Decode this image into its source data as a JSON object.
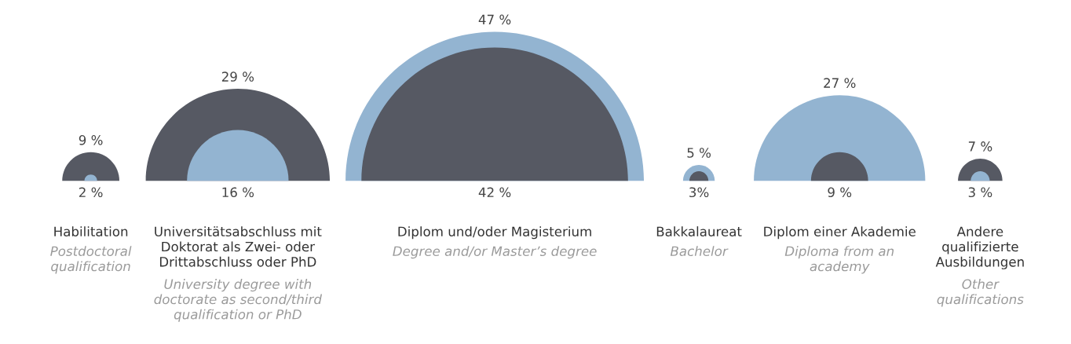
{
  "chart_data": {
    "type": "other",
    "categories": [
      "Habilitation",
      "Universitätsabschluss mit\nDoktorat als Zwei- oder\nDrittabschluss oder PhD",
      "Diplom und/oder Magisterium",
      "Bakkalaureat",
      "Diplom einer Akademie",
      "Andere\nqualifizierte\nAusbildungen"
    ],
    "annotations": [
      "Postdoctoral\nqualification",
      "University degree with\ndoctorate as second/third\nqualification or PhD",
      "Degree and/or Master’s degree",
      "Bachelor",
      "Diploma from an\nacademy",
      "Other\nqualifications"
    ],
    "series": [
      {
        "color": "#565963",
        "values": [
          9,
          29,
          42,
          3,
          9,
          7
        ],
        "value_labels": [
          "9 %",
          "29 %",
          "42 %",
          "3%",
          "9 %",
          "7 %"
        ]
      },
      {
        "color": "#93b4d1",
        "values": [
          2,
          16,
          47,
          5,
          27,
          3
        ],
        "value_labels": [
          "2 %",
          "16 %",
          "47 %",
          "5 %",
          "27 %",
          "3 %"
        ]
      }
    ]
  }
}
